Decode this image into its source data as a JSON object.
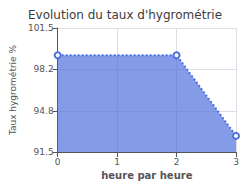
{
  "chart_data": {
    "type": "area",
    "title": "Evolution du taux d'hygrométrie",
    "xlabel": "heure par heure",
    "ylabel": "Taux hygrométrie %",
    "x": [
      0,
      2,
      3
    ],
    "values": [
      99.3,
      99.3,
      92.8
    ],
    "xlim": [
      0,
      3
    ],
    "xticks": [
      0,
      1,
      2,
      3
    ],
    "ylim": [
      91.5,
      101.5
    ],
    "yticks": [
      91.5,
      94.8,
      98.2,
      101.5
    ],
    "line_style": "dotted",
    "grid": true
  }
}
